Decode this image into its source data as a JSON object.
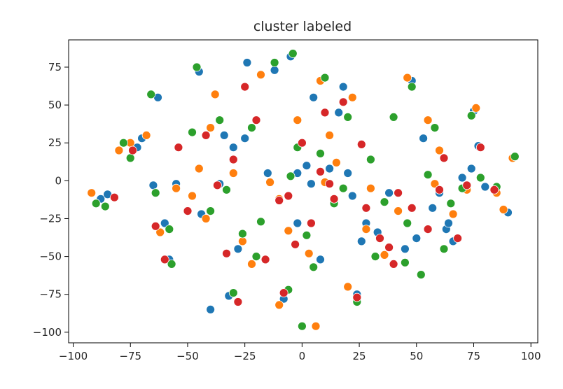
{
  "chart_data": {
    "type": "scatter",
    "title": "cluster labeled",
    "xlabel": "",
    "ylabel": "",
    "xlim": [
      -102,
      103
    ],
    "ylim": [
      -107,
      93
    ],
    "xticks": [
      -100,
      -75,
      -50,
      -25,
      0,
      25,
      50,
      75,
      100
    ],
    "yticks": [
      75,
      50,
      25,
      0,
      -25,
      -50,
      -75,
      -100
    ],
    "xtick_labels": [
      "−100",
      "−75",
      "−50",
      "−25",
      "0",
      "25",
      "50",
      "75",
      "100"
    ],
    "ytick_labels": [
      "75",
      "50",
      "25",
      "0",
      "−25",
      "−50",
      "−75",
      "−100"
    ],
    "grid": false,
    "legend": "none",
    "colors": [
      "#1f77b4",
      "#ff7f0e",
      "#2ca02c",
      "#d62728"
    ],
    "series": [
      {
        "color": "#1f77b4",
        "points": [
          [
            -88,
            -12
          ],
          [
            -85,
            -9
          ],
          [
            -72,
            22
          ],
          [
            -63,
            55
          ],
          [
            -65,
            -3
          ],
          [
            -60,
            -28
          ],
          [
            -58,
            -52
          ],
          [
            -45,
            72
          ],
          [
            -44,
            -22
          ],
          [
            -36,
            -2
          ],
          [
            -34,
            30
          ],
          [
            -32,
            -76
          ],
          [
            -28,
            -45
          ],
          [
            -25,
            28
          ],
          [
            -24,
            78
          ],
          [
            -15,
            5
          ],
          [
            -12,
            73
          ],
          [
            -8,
            -78
          ],
          [
            -5,
            82
          ],
          [
            -2,
            -28
          ],
          [
            2,
            10
          ],
          [
            5,
            55
          ],
          [
            8,
            -52
          ],
          [
            12,
            8
          ],
          [
            18,
            62
          ],
          [
            20,
            5
          ],
          [
            24,
            -75
          ],
          [
            26,
            -40
          ],
          [
            28,
            -28
          ],
          [
            33,
            -34
          ],
          [
            38,
            -8
          ],
          [
            45,
            -45
          ],
          [
            48,
            66
          ],
          [
            50,
            -38
          ],
          [
            53,
            28
          ],
          [
            57,
            -18
          ],
          [
            60,
            -8
          ],
          [
            63,
            -32
          ],
          [
            66,
            -40
          ],
          [
            70,
            2
          ],
          [
            75,
            46
          ],
          [
            77,
            23
          ],
          [
            80,
            -4
          ],
          [
            90,
            -21
          ],
          [
            92,
            15
          ],
          [
            -70,
            28
          ],
          [
            -55,
            -2
          ],
          [
            -30,
            22
          ],
          [
            -2,
            5
          ],
          [
            16,
            45
          ],
          [
            4,
            -2
          ],
          [
            22,
            -10
          ],
          [
            -40,
            -85
          ],
          [
            64,
            -28
          ],
          [
            74,
            8
          ]
        ]
      },
      {
        "color": "#ff7f0e",
        "points": [
          [
            -92,
            -8
          ],
          [
            -75,
            25
          ],
          [
            -68,
            30
          ],
          [
            -62,
            -34
          ],
          [
            -55,
            -5
          ],
          [
            -42,
            -25
          ],
          [
            -40,
            35
          ],
          [
            -38,
            57
          ],
          [
            -30,
            5
          ],
          [
            -26,
            -40
          ],
          [
            -22,
            -55
          ],
          [
            -18,
            70
          ],
          [
            -14,
            -1
          ],
          [
            -10,
            -82
          ],
          [
            -6,
            -33
          ],
          [
            -2,
            40
          ],
          [
            3,
            -48
          ],
          [
            6,
            -96
          ],
          [
            10,
            -1
          ],
          [
            15,
            12
          ],
          [
            20,
            -70
          ],
          [
            22,
            55
          ],
          [
            28,
            -32
          ],
          [
            36,
            -49
          ],
          [
            42,
            -20
          ],
          [
            46,
            68
          ],
          [
            55,
            40
          ],
          [
            58,
            -2
          ],
          [
            66,
            -22
          ],
          [
            72,
            -6
          ],
          [
            76,
            48
          ],
          [
            85,
            -8
          ],
          [
            88,
            -19
          ],
          [
            92,
            15
          ],
          [
            -80,
            20
          ],
          [
            -45,
            8
          ],
          [
            -10,
            -12
          ],
          [
            12,
            30
          ],
          [
            30,
            -5
          ],
          [
            60,
            20
          ],
          [
            -48,
            -10
          ],
          [
            8,
            66
          ]
        ]
      },
      {
        "color": "#2ca02c",
        "points": [
          [
            -90,
            -15
          ],
          [
            -86,
            -17
          ],
          [
            -78,
            25
          ],
          [
            -66,
            57
          ],
          [
            -64,
            -8
          ],
          [
            -58,
            -32
          ],
          [
            -57,
            -55
          ],
          [
            -48,
            32
          ],
          [
            -46,
            75
          ],
          [
            -40,
            -20
          ],
          [
            -36,
            40
          ],
          [
            -33,
            -6
          ],
          [
            -30,
            -74
          ],
          [
            -26,
            -35
          ],
          [
            -22,
            35
          ],
          [
            -20,
            -50
          ],
          [
            -12,
            78
          ],
          [
            -6,
            -72
          ],
          [
            -4,
            84
          ],
          [
            2,
            -36
          ],
          [
            5,
            -57
          ],
          [
            8,
            18
          ],
          [
            10,
            68
          ],
          [
            14,
            -15
          ],
          [
            20,
            42
          ],
          [
            24,
            -80
          ],
          [
            32,
            -50
          ],
          [
            36,
            -14
          ],
          [
            40,
            42
          ],
          [
            45,
            -54
          ],
          [
            48,
            62
          ],
          [
            52,
            -62
          ],
          [
            58,
            35
          ],
          [
            62,
            -45
          ],
          [
            65,
            -15
          ],
          [
            70,
            -5
          ],
          [
            74,
            43
          ],
          [
            78,
            2
          ],
          [
            85,
            -4
          ],
          [
            93,
            16
          ],
          [
            0,
            -96
          ],
          [
            -5,
            3
          ],
          [
            30,
            14
          ],
          [
            -18,
            -27
          ],
          [
            46,
            -28
          ],
          [
            -75,
            15
          ],
          [
            -2,
            22
          ],
          [
            18,
            -5
          ],
          [
            55,
            4
          ]
        ]
      },
      {
        "color": "#d62728",
        "points": [
          [
            -82,
            -11
          ],
          [
            -74,
            20
          ],
          [
            -64,
            -30
          ],
          [
            -60,
            -52
          ],
          [
            -54,
            22
          ],
          [
            -42,
            30
          ],
          [
            -37,
            -3
          ],
          [
            -33,
            -48
          ],
          [
            -28,
            -80
          ],
          [
            -25,
            62
          ],
          [
            -20,
            40
          ],
          [
            -16,
            -52
          ],
          [
            -10,
            -13
          ],
          [
            -8,
            -74
          ],
          [
            -3,
            -42
          ],
          [
            0,
            25
          ],
          [
            4,
            -28
          ],
          [
            8,
            6
          ],
          [
            12,
            -2
          ],
          [
            14,
            -12
          ],
          [
            18,
            52
          ],
          [
            24,
            -77
          ],
          [
            28,
            -18
          ],
          [
            34,
            -38
          ],
          [
            38,
            -44
          ],
          [
            42,
            -8
          ],
          [
            48,
            -18
          ],
          [
            55,
            -32
          ],
          [
            60,
            -6
          ],
          [
            62,
            15
          ],
          [
            68,
            -38
          ],
          [
            72,
            -3
          ],
          [
            78,
            22
          ],
          [
            84,
            -6
          ],
          [
            -30,
            14
          ],
          [
            10,
            45
          ],
          [
            -50,
            -20
          ],
          [
            40,
            -55
          ],
          [
            -6,
            -10
          ],
          [
            26,
            24
          ]
        ]
      }
    ]
  }
}
